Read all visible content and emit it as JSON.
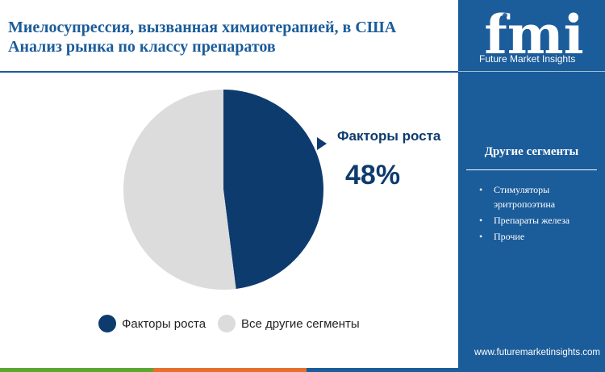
{
  "header": {
    "title_line1": "Миелосупрессия, вызванная химиотерапией, в США",
    "title_line2": "Анализ рынка по классу препаратов"
  },
  "chart_data": {
    "type": "pie",
    "title": "",
    "slices": [
      {
        "label": "Факторы роста",
        "value": 48,
        "color": "#0d3b6e"
      },
      {
        "label": "Все другие сегменты",
        "value": 52,
        "color": "#dcdcdc"
      }
    ],
    "callout": {
      "label": "Факторы роста",
      "value_text": "48%"
    },
    "legend": {
      "position": "bottom"
    }
  },
  "sidebar": {
    "logo_text": "fmi",
    "logo_caption": "Future Market Insights",
    "segments_title": "Другие сегменты",
    "segments": [
      "Стимуляторы эритропоэтина",
      "Препараты железа",
      "Прочие"
    ],
    "website": "www.futuremarketinsights.com"
  },
  "colors": {
    "brand_blue": "#1b5c9a",
    "dark_navy": "#0d3b6e",
    "footer_green": "#5aa832",
    "footer_orange": "#e66f2c",
    "footer_blue": "#1b5c9a"
  }
}
